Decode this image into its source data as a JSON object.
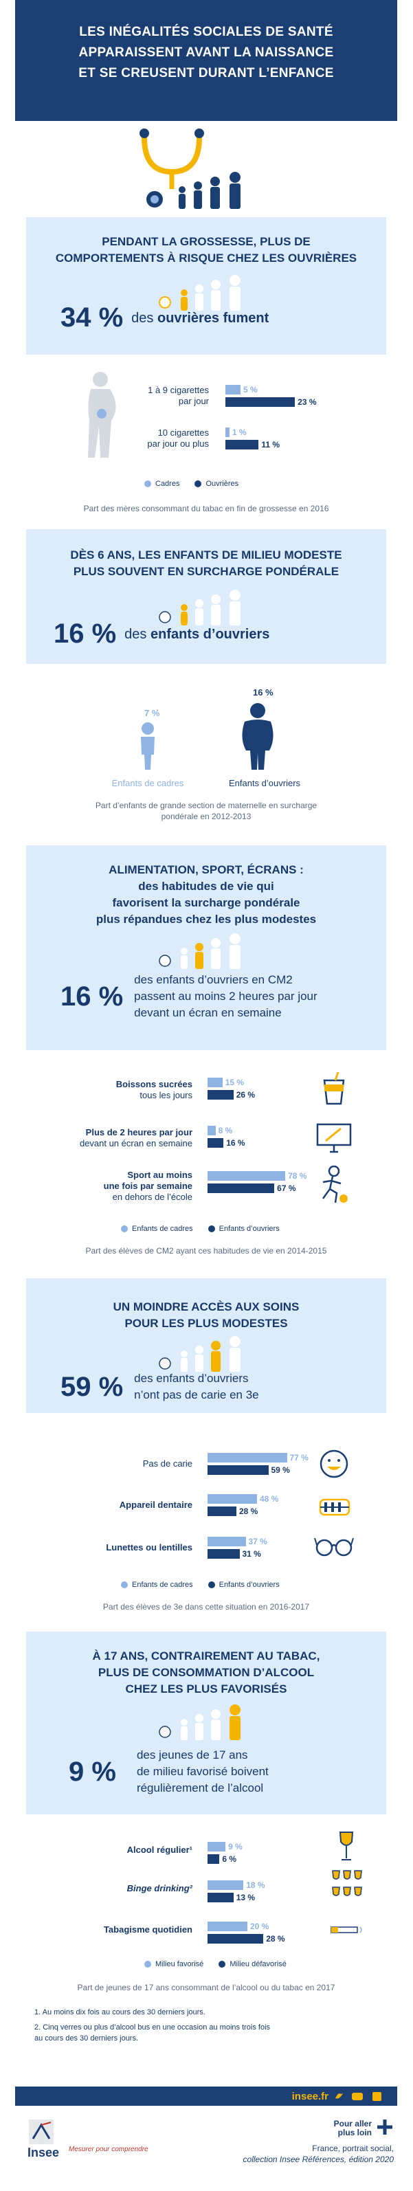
{
  "header": {
    "lines": [
      "LES INÉGALITÉS SOCIALES DE SANTÉ",
      "APPARAISSENT AVANT LA NAISSANCE",
      "ET SE CREUSENT DURANT L’ENFANCE"
    ]
  },
  "colors": {
    "navy": "#1c3f73",
    "light_blue": "#8fb4e3",
    "panel_bg": "#dcecfa",
    "yellow": "#f5b400"
  },
  "s1": {
    "title": [
      "PENDANT LA GROSSESSE, PLUS DE",
      "COMPORTEMENTS À RISQUE CHEZ LES OUVRIÈRES"
    ],
    "stat_value": "34 %",
    "stat_pre": "des ",
    "stat_bold": "ouvrières fument",
    "rows": [
      {
        "label": [
          "1 à 9 cigarettes",
          "par jour"
        ],
        "cadres": 5,
        "ouvrieres": 23,
        "cadres_label": "5 %",
        "ouvrieres_label": "23 %"
      },
      {
        "label": [
          "10 cigarettes",
          "par jour ou plus"
        ],
        "cadres": 1,
        "ouvrieres": 11,
        "cadres_label": "1 %",
        "ouvrieres_label": "11 %"
      }
    ],
    "legend": [
      "Cadres",
      "Ouvrières"
    ],
    "caption": "Part des mères consommant du tabac en fin de grossesse en 2016"
  },
  "s2": {
    "title": [
      "DÈS 6 ANS, LES ENFANTS DE MILIEU MODESTE",
      "PLUS SOUVENT EN SURCHARGE PONDÉRALE"
    ],
    "stat_value": "16 %",
    "stat_pre": "des ",
    "stat_bold": "enfants d’ouvriers",
    "cadres_value": "7 %",
    "ouvriers_value": "16 %",
    "cadres_label": "Enfants de cadres",
    "ouvriers_label": "Enfants d’ouvriers",
    "caption": [
      "Part d’enfants de grande section de maternelle en surcharge",
      "pondérale en 2012-2013"
    ]
  },
  "s3": {
    "title": [
      "ALIMENTATION, SPORT, ÉCRANS :",
      "des habitudes de vie qui",
      "favorisent la surcharge pondérale",
      "plus répandues chez les plus modestes"
    ],
    "stat_value": "16 %",
    "stat_lines": [
      "des enfants d’ouvriers en CM2",
      "passent au moins 2 heures par jour",
      "devant un écran en semaine"
    ],
    "rows": [
      {
        "label": [
          "Boissons sucrées",
          "tous les jours"
        ],
        "cadres": 15,
        "ouvriers": 26,
        "cadres_label": "15 %",
        "ouvriers_label": "26 %"
      },
      {
        "label": [
          "Plus de 2 heures par jour",
          "devant un écran en semaine"
        ],
        "cadres": 8,
        "ouvriers": 16,
        "cadres_label": "8 %",
        "ouvriers_label": "16 %"
      },
      {
        "label": [
          "Sport au moins",
          "une fois par semaine",
          "en dehors de l’école"
        ],
        "cadres": 78,
        "ouvriers": 67,
        "cadres_label": "78 %",
        "ouvriers_label": "67 %"
      }
    ],
    "legend": [
      "Enfants de cadres",
      "Enfants d’ouvriers"
    ],
    "caption": "Part des élèves de CM2 ayant ces habitudes de vie en 2014-2015"
  },
  "s4": {
    "title": [
      "UN MOINDRE ACCÈS AUX SOINS",
      "POUR LES PLUS MODESTES"
    ],
    "stat_value": "59 %",
    "stat_lines": [
      "des enfants d’ouvriers",
      "n’ont pas de carie en 3e"
    ],
    "rows": [
      {
        "label": [
          "Pas de carie"
        ],
        "cadres": 77,
        "ouvriers": 59,
        "cadres_label": "77 %",
        "ouvriers_label": "59 %"
      },
      {
        "label": [
          "Appareil dentaire"
        ],
        "cadres": 48,
        "ouvriers": 28,
        "cadres_label": "48 %",
        "ouvriers_label": "28 %"
      },
      {
        "label": [
          "Lunettes ou lentilles"
        ],
        "cadres": 37,
        "ouvriers": 31,
        "cadres_label": "37 %",
        "ouvriers_label": "31 %"
      }
    ],
    "legend": [
      "Enfants de cadres",
      "Enfants d’ouvriers"
    ],
    "caption": "Part des élèves de 3e dans cette situation en 2016-2017"
  },
  "s5": {
    "title": [
      "À 17 ANS, CONTRAIREMENT AU TABAC,",
      "PLUS DE CONSOMMATION D’ALCOOL",
      "CHEZ LES PLUS FAVORISÉS"
    ],
    "stat_value": "9 %",
    "stat_lines": [
      "des jeunes de 17 ans",
      "de milieu favorisé boivent",
      "régulièrement de l’alcool"
    ],
    "rows": [
      {
        "label": [
          "Alcool régulier¹"
        ],
        "fav": 9,
        "defav": 6,
        "fav_label": "9 %",
        "defav_label": "6 %"
      },
      {
        "label": [
          "Binge drinking²"
        ],
        "fav": 18,
        "defav": 13,
        "fav_label": "18 %",
        "defav_label": "13 %"
      },
      {
        "label": [
          "Tabagisme quotidien"
        ],
        "fav": 20,
        "defav": 28,
        "fav_label": "20 %",
        "defav_label": "28 %"
      }
    ],
    "legend": [
      "Milieu favorisé",
      "Milieu défavorisé"
    ],
    "caption": "Part de jeunes de 17 ans consommant de l’alcool ou du tabac en 2017"
  },
  "footnotes": [
    "1. Au moins dix fois au cours des 30 derniers jours.",
    "2. Cinq verres ou plus d’alcool bus en une occasion au moins trois fois",
    "au cours des 30 derniers jours."
  ],
  "footer": {
    "site": "insee.fr",
    "pour_aller": [
      "Pour aller",
      "plus loin"
    ],
    "tagline": "Mesurer pour comprendre",
    "logo_text": "Insee",
    "ref": [
      "France, portrait social,",
      "collection Insee Références, édition 2020"
    ]
  }
}
